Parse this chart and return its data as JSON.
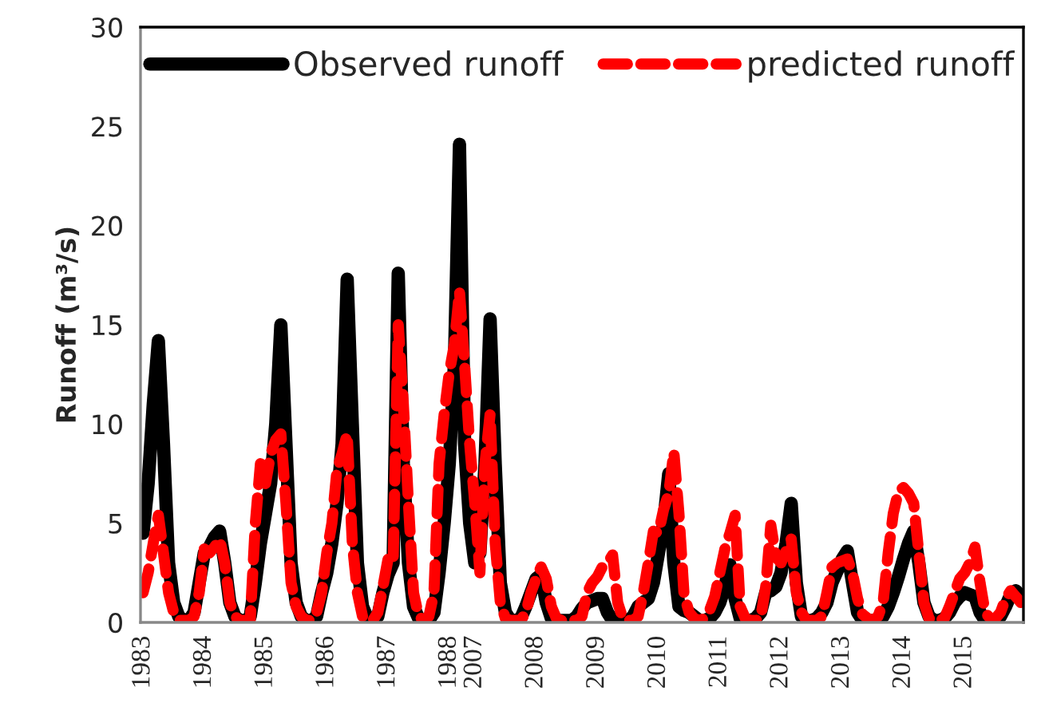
{
  "chart_data": {
    "type": "line",
    "ylabel": "Runoff (m³/s)",
    "categories": [
      "1983",
      null,
      null,
      null,
      null,
      null,
      null,
      null,
      null,
      null,
      null,
      null,
      "1984",
      null,
      null,
      null,
      null,
      null,
      null,
      null,
      null,
      null,
      null,
      null,
      "1985",
      null,
      null,
      null,
      null,
      null,
      null,
      null,
      null,
      null,
      null,
      null,
      "1986",
      null,
      null,
      null,
      null,
      null,
      null,
      null,
      null,
      null,
      null,
      null,
      "1987",
      null,
      null,
      null,
      null,
      null,
      null,
      null,
      null,
      null,
      null,
      null,
      "1988",
      null,
      null,
      null,
      null,
      "2007",
      null,
      null,
      null,
      null,
      null,
      null,
      null,
      null,
      null,
      null,
      null,
      "2008",
      null,
      null,
      null,
      null,
      null,
      null,
      null,
      null,
      null,
      null,
      null,
      "2009",
      null,
      null,
      null,
      null,
      null,
      null,
      null,
      null,
      null,
      null,
      null,
      "2010",
      null,
      null,
      null,
      null,
      null,
      null,
      null,
      null,
      null,
      null,
      null,
      "2011",
      null,
      null,
      null,
      null,
      null,
      null,
      null,
      null,
      null,
      null,
      null,
      "2012",
      null,
      null,
      null,
      null,
      null,
      null,
      null,
      null,
      null,
      null,
      null,
      "2013",
      null,
      null,
      null,
      null,
      null,
      null,
      null,
      null,
      null,
      null,
      null,
      "2014",
      null,
      null,
      null,
      null,
      null,
      null,
      null,
      null,
      null,
      null,
      null,
      "2015",
      null,
      null,
      null,
      null,
      null,
      null,
      null,
      null,
      null,
      null,
      null
    ],
    "series": [
      {
        "name": "Observed runoff",
        "color": "#000000",
        "line_style": "solid",
        "values": [
          4.5,
          7,
          11,
          14.2,
          9,
          3,
          1,
          0.3,
          0.1,
          0.1,
          0.5,
          2,
          3.5,
          3.8,
          4.3,
          4.6,
          3,
          1,
          0.3,
          0.1,
          0.1,
          0.3,
          2,
          4,
          5.5,
          7,
          10,
          15,
          9,
          3,
          1,
          0.3,
          0.1,
          0.1,
          0.3,
          1.5,
          2.5,
          4,
          6,
          9,
          17.3,
          10,
          3,
          0.8,
          0.2,
          0.1,
          0.3,
          1.5,
          2.4,
          3,
          17.6,
          8,
          3,
          0.8,
          0.2,
          0.1,
          0.1,
          0.5,
          2.5,
          5,
          8,
          13,
          24.1,
          9,
          5,
          3,
          3.5,
          8,
          15.3,
          8,
          2,
          0.5,
          0.1,
          0.1,
          0.2,
          0.8,
          1.5,
          2.2,
          2.4,
          1.0,
          0.2,
          0.1,
          0.1,
          0.1,
          0.1,
          0.3,
          0.7,
          1.0,
          1.1,
          1.2,
          1.2,
          0.5,
          0.1,
          0.1,
          0.1,
          0.1,
          0.3,
          0.8,
          1.0,
          1.2,
          2,
          3.5,
          5,
          7.5,
          3,
          0.8,
          0.6,
          0.5,
          0.3,
          0.1,
          0.1,
          0.2,
          0.5,
          1.0,
          1.8,
          2.9,
          1.2,
          0.2,
          0.1,
          0.1,
          0.2,
          0.5,
          1.5,
          1.6,
          1.8,
          2.5,
          4,
          6.0,
          2,
          0.3,
          0.1,
          0.1,
          0.2,
          0.5,
          1,
          2,
          2.6,
          3.2,
          3.6,
          2,
          0.5,
          0.1,
          0.1,
          0.1,
          0.1,
          0.3,
          0.8,
          1.5,
          2.3,
          3.2,
          4.0,
          4.6,
          3,
          1,
          0.3,
          0.1,
          0.1,
          0.2,
          0.5,
          1.0,
          1.3,
          1.5,
          1.4,
          1.3,
          0.5,
          0.1,
          0.1,
          0.1,
          0.3,
          0.8,
          1.4,
          1.6,
          1.3
        ]
      },
      {
        "name": "predicted runoff",
        "color": "#ff0000",
        "line_style": "dashed",
        "values": [
          1.5,
          2.5,
          4,
          5.4,
          3.5,
          1.5,
          0.5,
          0.1,
          0.1,
          0.1,
          0.3,
          1.5,
          3.7,
          3.5,
          3.8,
          4.2,
          3,
          1,
          0.3,
          0.1,
          0.1,
          0.1,
          5,
          8,
          7,
          8.5,
          9.2,
          9.5,
          6,
          2,
          0.8,
          0.3,
          0.1,
          0.1,
          0.5,
          1.5,
          3.5,
          5,
          7.7,
          8.5,
          9.5,
          4,
          1.5,
          0.3,
          0.1,
          0.1,
          0.5,
          1.8,
          3.2,
          3.0,
          15.0,
          11,
          6,
          1.5,
          0.3,
          0.1,
          0.3,
          1.5,
          8,
          10.5,
          12.6,
          14,
          16.7,
          13,
          9,
          6,
          2.5,
          8,
          10.5,
          4,
          1,
          0.2,
          0.1,
          0.1,
          0.1,
          0.5,
          1.5,
          2.2,
          2.8,
          2.2,
          0.8,
          0.2,
          0.1,
          0.1,
          0.1,
          0.1,
          0.3,
          1.5,
          2,
          2.3,
          2.8,
          3,
          3.4,
          1,
          0.2,
          0.1,
          0.1,
          0.3,
          1.5,
          3,
          4.6,
          4.5,
          5.7,
          6.5,
          8.6,
          5.5,
          1.4,
          0.5,
          0.2,
          0.1,
          0.2,
          0.6,
          1.3,
          2.5,
          3.7,
          4.5,
          5.4,
          0.8,
          0.2,
          0.1,
          0.1,
          0.2,
          1.8,
          4.9,
          3.3,
          3.0,
          3.6,
          4.2,
          1.5,
          0.5,
          0.1,
          0.1,
          0.1,
          0.3,
          1.5,
          2.8,
          3.0,
          3.1,
          3.2,
          2.5,
          1.2,
          0.4,
          0.2,
          0.1,
          0.3,
          1.0,
          3.5,
          5.5,
          6.6,
          6.8,
          6.5,
          6.0,
          3.5,
          1.0,
          0.2,
          0.1,
          0.1,
          0.2,
          0.8,
          1.5,
          2.2,
          2.5,
          3.0,
          3.8,
          2.0,
          0.5,
          0.2,
          0.2,
          0.5,
          1.2,
          1.6,
          1.3,
          1.0
        ]
      }
    ],
    "ylim": [
      0,
      30
    ],
    "yticks": [
      0,
      5,
      10,
      15,
      20,
      25,
      30
    ],
    "grid": false,
    "legend": "top",
    "marker": "none"
  }
}
